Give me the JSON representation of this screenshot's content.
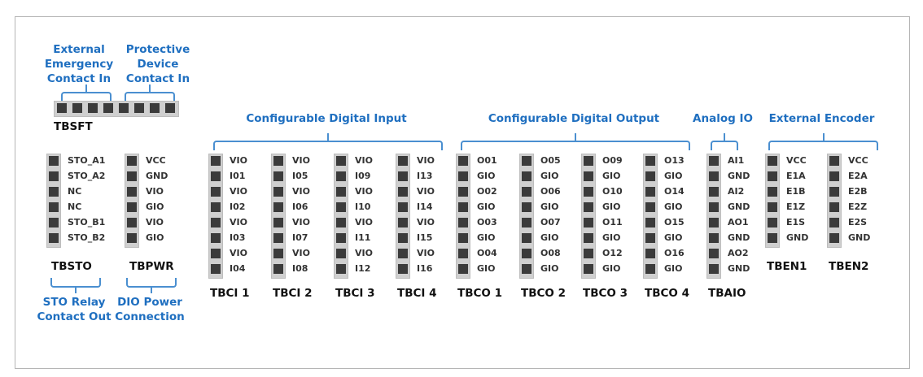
{
  "colors": {
    "accent": "#1f6fc0",
    "pin": "#3b3b3b",
    "strip": "#cfcfcf"
  },
  "tbsft": {
    "name": "TBSFT",
    "labels": [
      [
        "External",
        "Emergency",
        "Contact In"
      ],
      [
        "Protective",
        "Device",
        "Contact In"
      ]
    ]
  },
  "headers": [
    "Configurable Digital Input",
    "Configurable Digital Output",
    "Analog IO",
    "External Encoder"
  ],
  "bottom_labels": [
    [
      "STO Relay",
      "Contact Out"
    ],
    [
      "DIO Power",
      "Connection"
    ]
  ],
  "blocks": [
    {
      "name": "TBSTO",
      "pins": [
        "STO_A1",
        "STO_A2",
        "NC",
        "NC",
        "STO_B1",
        "STO_B2"
      ]
    },
    {
      "name": "TBPWR",
      "pins": [
        "VCC",
        "GND",
        "VIO",
        "GIO",
        "VIO",
        "GIO"
      ]
    },
    {
      "name": "TBCI 1",
      "pins": [
        "VIO",
        "I01",
        "VIO",
        "I02",
        "VIO",
        "I03",
        "VIO",
        "I04"
      ]
    },
    {
      "name": "TBCI 2",
      "pins": [
        "VIO",
        "I05",
        "VIO",
        "I06",
        "VIO",
        "I07",
        "VIO",
        "I08"
      ]
    },
    {
      "name": "TBCI 3",
      "pins": [
        "VIO",
        "I09",
        "VIO",
        "I10",
        "VIO",
        "I11",
        "VIO",
        "I12"
      ]
    },
    {
      "name": "TBCI 4",
      "pins": [
        "VIO",
        "I13",
        "VIO",
        "I14",
        "VIO",
        "I15",
        "VIO",
        "I16"
      ]
    },
    {
      "name": "TBCO 1",
      "pins": [
        "O01",
        "GIO",
        "O02",
        "GIO",
        "O03",
        "GIO",
        "O04",
        "GIO"
      ]
    },
    {
      "name": "TBCO 2",
      "pins": [
        "O05",
        "GIO",
        "O06",
        "GIO",
        "O07",
        "GIO",
        "O08",
        "GIO"
      ]
    },
    {
      "name": "TBCO 3",
      "pins": [
        "O09",
        "GIO",
        "O10",
        "GIO",
        "O11",
        "GIO",
        "O12",
        "GIO"
      ]
    },
    {
      "name": "TBCO 4",
      "pins": [
        "O13",
        "GIO",
        "O14",
        "GIO",
        "O15",
        "GIO",
        "O16",
        "GIO"
      ]
    },
    {
      "name": "TBAIO",
      "pins": [
        "AI1",
        "GND",
        "AI2",
        "GND",
        "AO1",
        "GND",
        "AO2",
        "GND"
      ]
    },
    {
      "name": "TBEN1",
      "pins": [
        "VCC",
        "E1A",
        "E1B",
        "E1Z",
        "E1S",
        "GND"
      ]
    },
    {
      "name": "TBEN2",
      "pins": [
        "VCC",
        "E2A",
        "E2B",
        "E2Z",
        "E2S",
        "GND"
      ]
    }
  ]
}
